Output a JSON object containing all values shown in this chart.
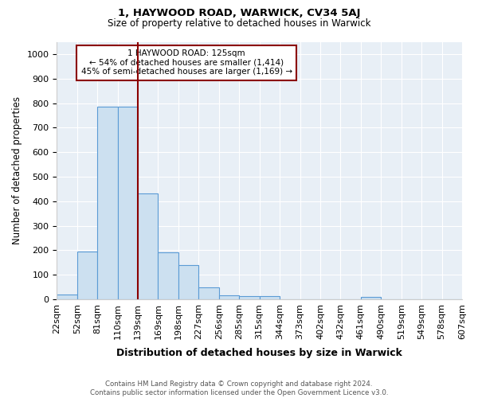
{
  "title1": "1, HAYWOOD ROAD, WARWICK, CV34 5AJ",
  "title2": "Size of property relative to detached houses in Warwick",
  "xlabel": "Distribution of detached houses by size in Warwick",
  "ylabel": "Number of detached properties",
  "footnote": "Contains HM Land Registry data © Crown copyright and database right 2024.\nContains public sector information licensed under the Open Government Licence v3.0.",
  "bin_edges": [
    "22sqm",
    "52sqm",
    "81sqm",
    "110sqm",
    "139sqm",
    "169sqm",
    "198sqm",
    "227sqm",
    "256sqm",
    "285sqm",
    "315sqm",
    "344sqm",
    "373sqm",
    "402sqm",
    "432sqm",
    "461sqm",
    "490sqm",
    "519sqm",
    "549sqm",
    "578sqm",
    "607sqm"
  ],
  "bar_values": [
    18,
    195,
    785,
    785,
    430,
    190,
    140,
    48,
    15,
    12,
    12,
    0,
    0,
    0,
    0,
    10,
    0,
    0,
    0,
    0
  ],
  "bar_color": "#cce0f0",
  "bar_edge_color": "#5b9bd5",
  "property_line_x": 3.5,
  "property_line_color": "#8B0000",
  "annotation_text": "1 HAYWOOD ROAD: 125sqm\n← 54% of detached houses are smaller (1,414)\n45% of semi-detached houses are larger (1,169) →",
  "annotation_box_color": "#8B0000",
  "ylim": [
    0,
    1050
  ],
  "yticks": [
    0,
    100,
    200,
    300,
    400,
    500,
    600,
    700,
    800,
    900,
    1000
  ],
  "background_color": "#e8eff6"
}
